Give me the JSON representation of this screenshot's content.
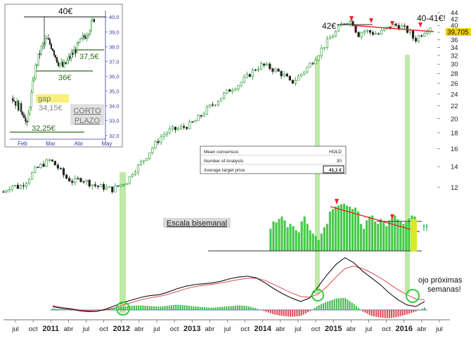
{
  "chart_data": [
    {
      "id": "main",
      "type": "candlestick",
      "scale": "log",
      "ylim": [
        10.5,
        44
      ],
      "y_ticks": [
        12,
        14,
        16,
        18,
        20,
        22,
        24,
        26,
        28,
        30,
        32,
        34,
        36,
        38,
        40,
        42,
        44
      ],
      "current_price_label": "39,705",
      "x_tick_labels": [
        "jul",
        "oct",
        "2011",
        "abr",
        "jul",
        "oct",
        "2012",
        "abr",
        "jul",
        "oct",
        "2013",
        "abr",
        "jul",
        "oct",
        "2014",
        "abr",
        "jul",
        "oct",
        "2015",
        "abr",
        "jul",
        "oct",
        "2016",
        "abr",
        "jul"
      ],
      "close_path": [
        [
          0,
          11.6
        ],
        [
          6,
          12.2
        ],
        [
          12,
          12.0
        ],
        [
          18,
          12.6
        ],
        [
          24,
          13.6
        ],
        [
          30,
          14.2
        ],
        [
          36,
          14.7
        ],
        [
          42,
          13.9
        ],
        [
          48,
          12.9
        ],
        [
          54,
          12.5
        ],
        [
          60,
          12.8
        ],
        [
          66,
          12.4
        ],
        [
          72,
          12.1
        ],
        [
          78,
          12.0
        ],
        [
          84,
          11.8
        ],
        [
          90,
          12.2
        ],
        [
          96,
          12.6
        ],
        [
          100,
          13.5
        ],
        [
          104,
          14.0
        ],
        [
          110,
          15.0
        ],
        [
          116,
          16.3
        ],
        [
          122,
          17.5
        ],
        [
          128,
          18.3
        ],
        [
          134,
          18.5
        ],
        [
          140,
          18.8
        ],
        [
          146,
          19.3
        ],
        [
          152,
          20.3
        ],
        [
          158,
          21.6
        ],
        [
          164,
          22.6
        ],
        [
          170,
          23.8
        ],
        [
          176,
          25.0
        ],
        [
          182,
          25.8
        ],
        [
          188,
          27.2
        ],
        [
          194,
          28.8
        ],
        [
          200,
          29.8
        ],
        [
          206,
          29.2
        ],
        [
          212,
          28.4
        ],
        [
          218,
          27.4
        ],
        [
          222,
          26.0
        ],
        [
          226,
          26.8
        ],
        [
          230,
          27.8
        ],
        [
          236,
          29.6
        ],
        [
          242,
          31.8
        ],
        [
          248,
          34.5
        ],
        [
          254,
          37.0
        ],
        [
          258,
          38.5
        ],
        [
          262,
          40.5
        ],
        [
          266,
          41.5
        ],
        [
          270,
          40.8
        ],
        [
          274,
          37.2
        ],
        [
          278,
          38.5
        ],
        [
          284,
          38.0
        ],
        [
          290,
          37.5
        ],
        [
          296,
          39.0
        ],
        [
          302,
          40.2
        ],
        [
          308,
          39.5
        ],
        [
          314,
          38.0
        ],
        [
          318,
          35.8
        ],
        [
          322,
          37.2
        ],
        [
          326,
          38.5
        ],
        [
          330,
          39.7
        ]
      ],
      "annotations": [
        "42€",
        "40-41€!"
      ]
    },
    {
      "id": "inset",
      "type": "candlestick",
      "ylim": [
        31.8,
        40.2
      ],
      "y_ticks": [
        "32,0",
        "33,0",
        "34,0",
        "35,0",
        "36,0",
        "37,0",
        "38,0",
        "39,0",
        "40,0"
      ],
      "x_tick_labels": [
        "Feb",
        "Mar",
        "Abr",
        "May"
      ],
      "close_path": [
        [
          0,
          34.5
        ],
        [
          4,
          34.0
        ],
        [
          8,
          33.5
        ],
        [
          10,
          32.5
        ],
        [
          12,
          34.0
        ],
        [
          16,
          36.5
        ],
        [
          20,
          37.8
        ],
        [
          24,
          38.5
        ],
        [
          28,
          38.0
        ],
        [
          32,
          37.0
        ],
        [
          36,
          36.6
        ],
        [
          40,
          37.2
        ],
        [
          44,
          37.7
        ],
        [
          48,
          38.3
        ],
        [
          52,
          38.8
        ],
        [
          56,
          39.5
        ],
        [
          58,
          39.9
        ]
      ],
      "annotations": [
        "40€",
        "37,5€",
        "36€",
        "gap",
        "34,15€",
        "32,25€",
        "CORTO",
        "PLAZO"
      ]
    },
    {
      "id": "biweekly-bars",
      "type": "bar",
      "title": "Escala bisemanal",
      "values": [
        0.45,
        0.6,
        0.58,
        0.65,
        0.7,
        0.62,
        0.48,
        0.55,
        0.5,
        0.42,
        0.38,
        0.6,
        0.7,
        0.55,
        0.42,
        0.35,
        0.3,
        0.22,
        0.35,
        0.48,
        0.55,
        0.8,
        0.85,
        0.9,
        0.92,
        0.95,
        0.96,
        0.92,
        0.9,
        0.85,
        0.88,
        0.8,
        0.55,
        0.45,
        0.62,
        0.7,
        0.72,
        0.6,
        0.55,
        0.65,
        0.58,
        0.5,
        0.62,
        0.68,
        0.72,
        0.64,
        0.6,
        0.55,
        0.58,
        0.66,
        0.72,
        0.7
      ],
      "annotations": [
        "!!"
      ]
    },
    {
      "id": "oscillator",
      "type": "line+histogram",
      "series": [
        {
          "values": [
            0.2,
            0.1,
            0.05,
            -0.05,
            -0.1,
            -0.08,
            0.05,
            0.25,
            0.45,
            0.6,
            0.75,
            0.85,
            0.9,
            1.05,
            1.25,
            1.4,
            1.5,
            1.55,
            1.6,
            1.7,
            1.85,
            1.95,
            2.0,
            1.9,
            1.6,
            1.25,
            0.95,
            0.7,
            0.5,
            0.7,
            1.4,
            2.1,
            2.7,
            3.1,
            2.8,
            2.3,
            1.9,
            1.5,
            1.0,
            0.6,
            0.3,
            0.2,
            0.5
          ]
        },
        {
          "values": [
            0.25,
            0.15,
            0.08,
            0.0,
            -0.06,
            -0.06,
            0.0,
            0.12,
            0.3,
            0.45,
            0.6,
            0.72,
            0.8,
            0.92,
            1.08,
            1.25,
            1.38,
            1.46,
            1.52,
            1.6,
            1.7,
            1.8,
            1.88,
            1.88,
            1.75,
            1.5,
            1.25,
            1.0,
            0.8,
            0.75,
            0.95,
            1.4,
            1.95,
            2.45,
            2.6,
            2.45,
            2.2,
            1.9,
            1.55,
            1.2,
            0.9,
            0.65,
            0.6
          ]
        }
      ],
      "histogram": [
        0.1,
        0.05,
        0.02,
        -0.05,
        -0.04,
        -0.02,
        0.05,
        0.15,
        0.22,
        0.28,
        0.3,
        0.26,
        0.22,
        0.28,
        0.35,
        0.3,
        0.24,
        0.18,
        0.15,
        0.2,
        0.25,
        0.3,
        0.26,
        0.1,
        -0.1,
        -0.3,
        -0.4,
        -0.45,
        -0.4,
        -0.1,
        0.3,
        0.55,
        0.75,
        0.8,
        0.4,
        -0.1,
        -0.4,
        -0.5,
        -0.55,
        -0.45,
        -0.3,
        -0.1,
        0.15
      ],
      "annotations": [
        "ojo próximas",
        "semanas!"
      ]
    }
  ],
  "consensus_table": {
    "rows": [
      {
        "label": "Mean consensus",
        "value": "HOLD"
      },
      {
        "label": "Number of Analysts",
        "value": "30"
      },
      {
        "label": "Average target price",
        "value": "41,1 €"
      }
    ]
  },
  "colors": {
    "candle_up": "#1e9a2a",
    "candle_down": "#222222",
    "trend_red": "#e8262a",
    "bar_green": "#46c94a",
    "hist_green": "#3cb844",
    "hist_red": "#e0474f",
    "osc_black": "#111111",
    "osc_red": "#d9393f",
    "highlight_green": "#bfe9a8",
    "price_tag": "#f2d20a",
    "inset_axis": "#3a3aa8",
    "gap_yellow": "#f6f07a",
    "baseline_blue": "#6b6bd6",
    "circle_green": "#2fcf3a"
  }
}
